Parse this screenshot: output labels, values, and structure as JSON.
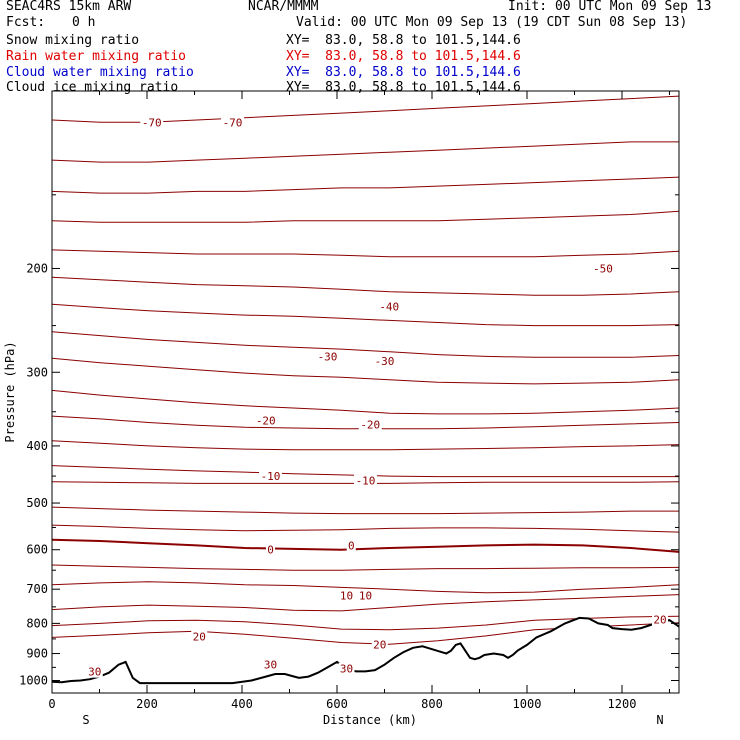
{
  "header": {
    "model": "SEAC4RS 15km ARW",
    "org": "NCAR/MMMM",
    "init": "Init: 00 UTC Mon 09 Sep 13",
    "fcst_label": "Fcst:",
    "fcst_value": "0 h",
    "valid": "Valid: 00 UTC Mon 09 Sep 13 (19 CDT Sun 08 Sep 13)"
  },
  "fields": [
    {
      "name": "Snow mixing ratio",
      "xy": "XY=  83.0, 58.8 to 101.5,144.6",
      "color": "#000000"
    },
    {
      "name": "Rain water mixing ratio",
      "xy": "XY=  83.0, 58.8 to 101.5,144.6",
      "color": "#e00000"
    },
    {
      "name": "Cloud water mixing ratio",
      "xy": "XY=  83.0, 58.8 to 101.5,144.6",
      "color": "#0000cc"
    },
    {
      "name": "Cloud ice mixing ratio",
      "xy": "XY=  83.0, 58.8 to 101.5,144.6",
      "color": "#000000"
    }
  ],
  "chart_data": {
    "type": "line",
    "xlabel": "Distance (km)",
    "ylabel": "Pressure (hPa)",
    "xlim": [
      0,
      1320
    ],
    "ylim": [
      1050,
      100
    ],
    "y_scale": "log",
    "x_ticks": [
      0,
      200,
      400,
      600,
      800,
      1000,
      1200
    ],
    "y_ticks": [
      200,
      300,
      400,
      500,
      600,
      700,
      800,
      900,
      1000
    ],
    "y_tick_labels": [
      "200",
      "300",
      "400",
      "500",
      "600",
      "700",
      "800",
      "900",
      "1000"
    ],
    "x_tick_labels": [
      "0",
      "200",
      "400",
      "600",
      "800",
      "1000",
      "1200"
    ],
    "x_end_labels": [
      "S",
      "N"
    ],
    "contour_color": "#8b0000",
    "contour_labels": [
      {
        "text": "-70",
        "x": 210,
        "p": 113
      },
      {
        "text": "-70",
        "x": 380,
        "p": 113
      },
      {
        "text": "-50",
        "x": 1160,
        "p": 200
      },
      {
        "text": "-40",
        "x": 710,
        "p": 232
      },
      {
        "text": "-30",
        "x": 580,
        "p": 282
      },
      {
        "text": "-30",
        "x": 700,
        "p": 287
      },
      {
        "text": "-20",
        "x": 450,
        "p": 362
      },
      {
        "text": "-20",
        "x": 670,
        "p": 368
      },
      {
        "text": "-10",
        "x": 460,
        "p": 450
      },
      {
        "text": "-10",
        "x": 660,
        "p": 458
      },
      {
        "text": "0",
        "x": 460,
        "p": 600
      },
      {
        "text": "0",
        "x": 630,
        "p": 590
      },
      {
        "text": "10",
        "x": 620,
        "p": 718
      },
      {
        "text": "10",
        "x": 660,
        "p": 718
      },
      {
        "text": "20",
        "x": 310,
        "p": 842
      },
      {
        "text": "20",
        "x": 690,
        "p": 868
      },
      {
        "text": "20",
        "x": 1280,
        "p": 788
      },
      {
        "text": "30",
        "x": 90,
        "p": 966
      },
      {
        "text": "30",
        "x": 460,
        "p": 940
      },
      {
        "text": "30",
        "x": 620,
        "p": 955
      }
    ],
    "isotherms": [
      {
        "p": [
          112,
          113,
          113,
          112,
          111,
          110,
          109,
          108,
          107,
          106,
          105,
          104,
          103,
          102
        ]
      },
      {
        "p": [
          131,
          132,
          132,
          131,
          130,
          129,
          128,
          127,
          126,
          125,
          124,
          123,
          122,
          122
        ]
      },
      {
        "p": [
          148,
          149,
          149,
          148,
          148,
          147,
          146,
          146,
          145,
          144,
          143,
          142,
          141,
          140
        ]
      },
      {
        "p": [
          166,
          167,
          167,
          167,
          167,
          166,
          166,
          166,
          166,
          165,
          164,
          163,
          162,
          160
        ]
      },
      {
        "p": [
          186,
          187,
          188,
          189,
          189,
          189,
          190,
          191,
          191,
          191,
          191,
          190,
          189,
          187
        ]
      },
      {
        "p": [
          207,
          209,
          211,
          213,
          214,
          215,
          217,
          219,
          220,
          221,
          222,
          222,
          221,
          219
        ]
      },
      {
        "p": [
          230,
          233,
          236,
          238,
          240,
          241,
          243,
          245,
          247,
          249,
          250,
          250,
          250,
          249
        ]
      },
      {
        "p": [
          256,
          260,
          264,
          267,
          270,
          272,
          274,
          277,
          280,
          282,
          283,
          283,
          283,
          281
        ]
      },
      {
        "p": [
          284,
          289,
          293,
          297,
          301,
          304,
          306,
          309,
          312,
          313,
          314,
          313,
          312,
          309
        ]
      },
      {
        "p": [
          322,
          328,
          333,
          338,
          342,
          345,
          348,
          352,
          353,
          353,
          352,
          350,
          348,
          345
        ]
      },
      {
        "p": [
          356,
          360,
          365,
          369,
          372,
          373,
          374,
          374,
          374,
          373,
          371,
          369,
          367,
          365
        ]
      },
      {
        "p": [
          392,
          396,
          400,
          403,
          405,
          406,
          406,
          406,
          405,
          404,
          403,
          401,
          400,
          398
        ]
      },
      {
        "p": [
          432,
          435,
          438,
          441,
          443,
          446,
          448,
          450,
          451,
          451,
          451,
          451,
          451,
          451
        ]
      },
      {
        "p": [
          460,
          461,
          462,
          463,
          463,
          463,
          463,
          463,
          462,
          461,
          461,
          461,
          461,
          460
        ]
      },
      {
        "p": [
          508,
          511,
          514,
          516,
          518,
          520,
          521,
          521,
          521,
          520,
          519,
          518,
          516,
          516
        ]
      },
      {
        "p": [
          545,
          548,
          552,
          555,
          557,
          556,
          555,
          552,
          551,
          551,
          552,
          554,
          557,
          560
        ]
      },
      {
        "p": [
          577,
          580,
          585,
          590,
          596,
          598,
          600,
          596,
          593,
          590,
          588,
          590,
          596,
          605
        ]
      },
      {
        "p": [
          637,
          640,
          643,
          646,
          648,
          650,
          650,
          648,
          646,
          646,
          645,
          644,
          644,
          643
        ]
      },
      {
        "p": [
          688,
          683,
          680,
          683,
          688,
          690,
          695,
          700,
          706,
          710,
          708,
          700,
          695,
          688
        ]
      },
      {
        "p": [
          758,
          750,
          745,
          748,
          752,
          760,
          762,
          752,
          742,
          735,
          730,
          725,
          720,
          715
        ]
      },
      {
        "p": [
          807,
          800,
          792,
          790,
          795,
          805,
          818,
          820,
          815,
          805,
          790,
          785,
          780,
          778
        ]
      },
      {
        "p": [
          845,
          838,
          830,
          825,
          835,
          848,
          862,
          868,
          856,
          840,
          820,
          812,
          805,
          798
        ]
      }
    ],
    "terrain": {
      "x": [
        0,
        20,
        40,
        60,
        80,
        100,
        120,
        140,
        155,
        170,
        185,
        200,
        260,
        320,
        380,
        420,
        450,
        470,
        490,
        510,
        520,
        540,
        560,
        580,
        600,
        620,
        640,
        660,
        680,
        700,
        720,
        740,
        760,
        780,
        800,
        820,
        830,
        840,
        850,
        860,
        870,
        880,
        890,
        900,
        910,
        930,
        950,
        960,
        970,
        980,
        1000,
        1020,
        1050,
        1080,
        1110,
        1130,
        1150,
        1170,
        1180,
        1200,
        1220,
        1240,
        1260,
        1280,
        1300,
        1320
      ],
      "p": [
        1005,
        1007,
        1002,
        1000,
        995,
        985,
        970,
        940,
        930,
        990,
        1010,
        1010,
        1010,
        1010,
        1010,
        1000,
        985,
        975,
        975,
        985,
        990,
        985,
        970,
        950,
        930,
        955,
        965,
        965,
        960,
        940,
        915,
        895,
        880,
        875,
        885,
        895,
        900,
        890,
        870,
        865,
        890,
        915,
        920,
        915,
        905,
        900,
        905,
        915,
        905,
        890,
        870,
        845,
        825,
        800,
        783,
        785,
        800,
        805,
        815,
        818,
        820,
        815,
        805,
        793,
        790,
        810
      ]
    }
  }
}
